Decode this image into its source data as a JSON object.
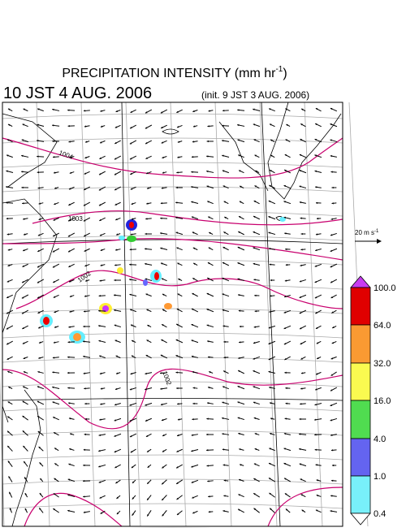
{
  "title": "PRECIPITATION INTENSITY (mm hr",
  "title_exponent": "-1",
  "title_close": ")",
  "valid_time": "10 JST 4 AUG. 2006",
  "init_time": "(init. 9 JST 3 AUG. 2006)",
  "reference_vector": {
    "label": "20 m s",
    "exponent": "-1"
  },
  "isobar_labels": [
    "1004",
    "1003",
    "1002",
    "1002"
  ],
  "colorbar": {
    "labels": [
      "100.0",
      "64.0",
      "32.0",
      "16.0",
      "4.0",
      "1.0",
      "0.4"
    ]
  }
}
